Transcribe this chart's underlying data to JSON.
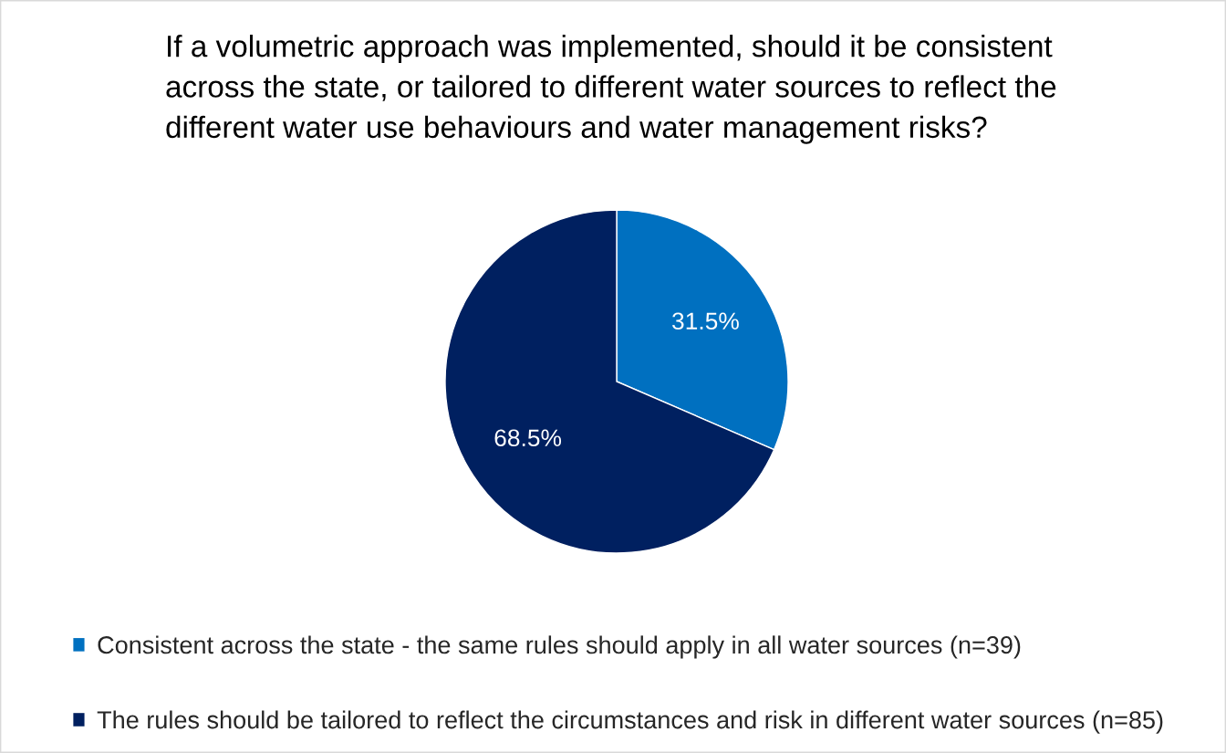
{
  "chart_data": {
    "type": "pie",
    "title": "If a volumetric approach was implemented, should it be consistent\nacross the state, or tailored to different water sources to reflect the\ndifferent water use behaviours and water management risks?",
    "categories": [
      "Consistent across the state - the same rules should apply in all water sources (n=39)",
      "The rules should be tailored to reflect the circumstances and risk in different water sources (n=85)"
    ],
    "values": [
      31.5,
      68.5
    ],
    "colors": [
      "#0070c0",
      "#002060"
    ],
    "value_labels": [
      "31.5%",
      "68.5%"
    ],
    "legend": "bottom"
  }
}
